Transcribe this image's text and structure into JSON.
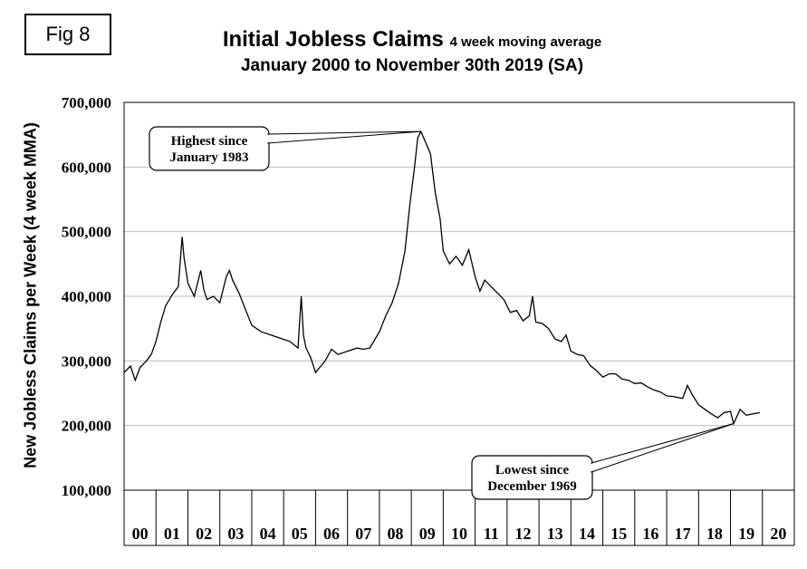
{
  "fig_label": "Fig 8",
  "chart_data": {
    "type": "line",
    "title": "Initial Jobless Claims",
    "title_suffix": "4 week moving average",
    "subtitle": "January 2000 to November 30th 2019 (SA)",
    "xlabel": "",
    "ylabel": "New Jobless Claims per Week (4 week MMA)",
    "ylim": [
      100000,
      700000
    ],
    "xlim": [
      2000,
      2021
    ],
    "y_ticks": [
      100000,
      200000,
      300000,
      400000,
      500000,
      600000,
      700000
    ],
    "y_tick_labels": [
      "100,000",
      "200,000",
      "300,000",
      "400,000",
      "500,000",
      "600,000",
      "700,000"
    ],
    "x_tick_labels": [
      "00",
      "01",
      "02",
      "03",
      "04",
      "05",
      "06",
      "07",
      "08",
      "09",
      "10",
      "11",
      "12",
      "13",
      "14",
      "15",
      "16",
      "17",
      "18",
      "19",
      "20"
    ],
    "grid": "horizontal",
    "series": [
      {
        "x": [
          2000.0,
          2000.2,
          2000.35,
          2000.5,
          2000.7,
          2000.85,
          2001.0,
          2001.15,
          2001.3,
          2001.5,
          2001.7,
          2001.82,
          2001.88,
          2002.0,
          2002.2,
          2002.4,
          2002.5,
          2002.6,
          2002.8,
          2003.0,
          2003.2,
          2003.3,
          2003.4,
          2003.6,
          2003.8,
          2004.0,
          2004.3,
          2004.6,
          2004.9,
          2005.2,
          2005.45,
          2005.55,
          2005.62,
          2005.7,
          2005.85,
          2006.0,
          2006.3,
          2006.5,
          2006.7,
          2007.0,
          2007.3,
          2007.5,
          2007.7,
          2008.0,
          2008.2,
          2008.4,
          2008.6,
          2008.8,
          2008.95,
          2009.1,
          2009.2,
          2009.3,
          2009.45,
          2009.6,
          2009.75,
          2009.9,
          2010.0,
          2010.2,
          2010.4,
          2010.6,
          2010.8,
          2011.0,
          2011.15,
          2011.3,
          2011.5,
          2011.7,
          2011.9,
          2012.1,
          2012.3,
          2012.5,
          2012.7,
          2012.8,
          2012.9,
          2013.1,
          2013.3,
          2013.5,
          2013.7,
          2013.85,
          2014.0,
          2014.2,
          2014.4,
          2014.6,
          2014.8,
          2015.0,
          2015.2,
          2015.4,
          2015.6,
          2015.8,
          2016.0,
          2016.2,
          2016.4,
          2016.6,
          2016.8,
          2017.0,
          2017.2,
          2017.5,
          2017.65,
          2017.8,
          2018.0,
          2018.2,
          2018.4,
          2018.6,
          2018.8,
          2019.0,
          2019.1,
          2019.3,
          2019.5,
          2019.7,
          2019.92
        ],
        "y": [
          282000,
          292000,
          270000,
          290000,
          300000,
          310000,
          330000,
          360000,
          385000,
          402000,
          415000,
          492000,
          460000,
          420000,
          400000,
          440000,
          410000,
          395000,
          400000,
          390000,
          430000,
          440000,
          425000,
          405000,
          380000,
          355000,
          345000,
          340000,
          335000,
          330000,
          320000,
          400000,
          340000,
          320000,
          305000,
          282000,
          300000,
          318000,
          310000,
          315000,
          320000,
          318000,
          320000,
          345000,
          370000,
          390000,
          420000,
          470000,
          540000,
          600000,
          645000,
          655000,
          638000,
          620000,
          560000,
          520000,
          470000,
          450000,
          462000,
          448000,
          472000,
          430000,
          408000,
          425000,
          415000,
          405000,
          395000,
          375000,
          378000,
          362000,
          370000,
          400000,
          360000,
          358000,
          350000,
          334000,
          330000,
          340000,
          315000,
          310000,
          308000,
          293000,
          285000,
          275000,
          280000,
          280000,
          272000,
          270000,
          265000,
          266000,
          260000,
          255000,
          252000,
          246000,
          245000,
          242000,
          262000,
          248000,
          232000,
          225000,
          218000,
          212000,
          220000,
          222000,
          203000,
          225000,
          216000,
          218000,
          220000
        ]
      }
    ],
    "annotations": [
      {
        "text": [
          "Highest since",
          "January 1983"
        ],
        "x": 2009.3,
        "y": 655000
      },
      {
        "text": [
          "Lowest since",
          "December 1969"
        ],
        "x": 2019.1,
        "y": 203000
      }
    ]
  }
}
